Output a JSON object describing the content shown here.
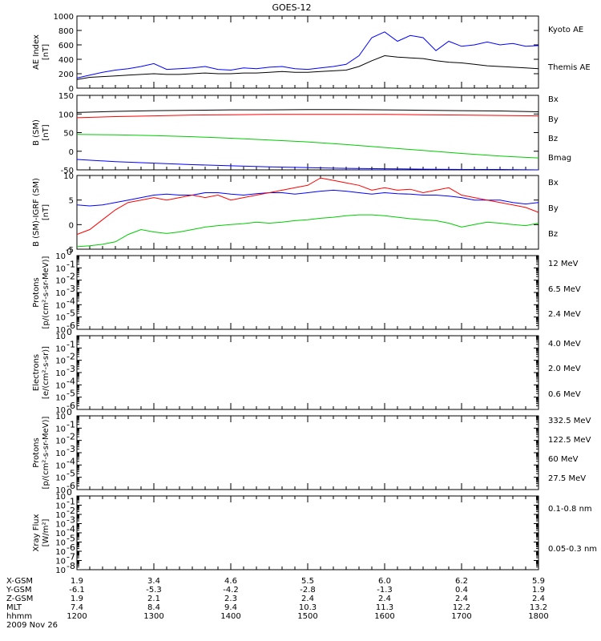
{
  "title": "GOES-12",
  "date_label": "2009 Nov 26",
  "chart_data": [
    {
      "type": "line",
      "panel": "ae",
      "ylabel": [
        "AE Index",
        "[nT]"
      ],
      "ylim": [
        0,
        1000
      ],
      "y_scale": "linear",
      "yticks": [
        0,
        200,
        400,
        600,
        800,
        1000
      ],
      "x": [
        "1200",
        "1210",
        "1220",
        "1230",
        "1240",
        "1250",
        "1300",
        "1310",
        "1320",
        "1330",
        "1340",
        "1350",
        "1400",
        "1410",
        "1420",
        "1430",
        "1440",
        "1450",
        "1500",
        "1510",
        "1520",
        "1530",
        "1540",
        "1550",
        "1600",
        "1610",
        "1620",
        "1630",
        "1640",
        "1650",
        "1700",
        "1710",
        "1720",
        "1730",
        "1740",
        "1750",
        "1800"
      ],
      "series": [
        {
          "name": "Kyoto AE",
          "color": "#0000ff",
          "values": [
            140,
            180,
            220,
            250,
            270,
            300,
            340,
            260,
            270,
            280,
            300,
            260,
            250,
            280,
            270,
            290,
            300,
            270,
            260,
            280,
            300,
            330,
            450,
            700,
            780,
            650,
            730,
            700,
            520,
            650,
            580,
            600,
            640,
            600,
            620,
            580,
            590
          ]
        },
        {
          "name": "Themis AE",
          "color": "#000000",
          "values": [
            120,
            150,
            160,
            170,
            180,
            190,
            200,
            190,
            190,
            200,
            210,
            200,
            200,
            210,
            210,
            220,
            230,
            220,
            220,
            230,
            240,
            250,
            300,
            380,
            450,
            430,
            420,
            410,
            380,
            360,
            350,
            330,
            310,
            300,
            290,
            280,
            270
          ]
        }
      ]
    },
    {
      "type": "line",
      "panel": "b",
      "ylabel": [
        "B (SM)",
        "[nT]"
      ],
      "ylim": [
        -50,
        150
      ],
      "y_scale": "linear",
      "yticks": [
        -50,
        0,
        50,
        100,
        150
      ],
      "x": [
        "1200",
        "1230",
        "1300",
        "1330",
        "1400",
        "1430",
        "1500",
        "1530",
        "1600",
        "1630",
        "1700",
        "1730",
        "1800"
      ],
      "series": [
        {
          "name": "Bx",
          "color": "#0000ff",
          "values": [
            -22,
            -28,
            -32,
            -36,
            -39,
            -42,
            -44,
            -46,
            -47,
            -48,
            -49,
            -49,
            -50
          ]
        },
        {
          "name": "By",
          "color": "#00cc00",
          "values": [
            45,
            44,
            42,
            39,
            35,
            30,
            25,
            18,
            10,
            2,
            -6,
            -13,
            -18
          ]
        },
        {
          "name": "Bz",
          "color": "#ff0000",
          "values": [
            90,
            93,
            95,
            97,
            98,
            99,
            99,
            99,
            99,
            98,
            97,
            96,
            95
          ]
        },
        {
          "name": "Bmag",
          "color": "#000000",
          "values": [
            104,
            107,
            109,
            110,
            111,
            111,
            112,
            112,
            111,
            110,
            109,
            108,
            106
          ]
        }
      ]
    },
    {
      "type": "line",
      "panel": "db",
      "ylabel": [
        "B (SM)-IGRF (SM)",
        "[nT]"
      ],
      "ylim": [
        -5,
        10
      ],
      "y_scale": "linear",
      "yticks": [
        -5,
        0,
        5,
        10
      ],
      "x": [
        "1200",
        "1210",
        "1220",
        "1230",
        "1240",
        "1250",
        "1300",
        "1310",
        "1320",
        "1330",
        "1340",
        "1350",
        "1400",
        "1410",
        "1420",
        "1430",
        "1440",
        "1450",
        "1500",
        "1510",
        "1520",
        "1530",
        "1540",
        "1550",
        "1600",
        "1610",
        "1620",
        "1630",
        "1640",
        "1650",
        "1700",
        "1710",
        "1720",
        "1730",
        "1740",
        "1750",
        "1800"
      ],
      "series": [
        {
          "name": "Bx",
          "color": "#0000ff",
          "values": [
            4,
            3.8,
            4,
            4.5,
            5,
            5.5,
            6,
            6.2,
            6,
            6,
            6.5,
            6.5,
            6.2,
            6,
            6.3,
            6.5,
            6.5,
            6.2,
            6.5,
            6.8,
            7,
            6.8,
            6.5,
            6.2,
            6.5,
            6.3,
            6.2,
            6,
            6,
            5.8,
            5.5,
            5,
            5,
            5,
            4.5,
            4.2,
            4.5
          ]
        },
        {
          "name": "By",
          "color": "#00cc00",
          "values": [
            -4.5,
            -4.3,
            -4,
            -3.5,
            -2,
            -1,
            -1.5,
            -1.8,
            -1.5,
            -1,
            -0.5,
            -0.2,
            0,
            0.2,
            0.5,
            0.3,
            0.5,
            0.8,
            1,
            1.3,
            1.5,
            1.8,
            2,
            2,
            1.8,
            1.5,
            1.2,
            1,
            0.8,
            0.3,
            -0.5,
            0,
            0.5,
            0.3,
            0,
            -0.2,
            0.3
          ]
        },
        {
          "name": "Bz",
          "color": "#ff0000",
          "values": [
            -2,
            -1,
            1,
            3,
            4.5,
            5,
            5.5,
            5,
            5.5,
            6,
            5.5,
            6,
            5,
            5.5,
            6,
            6.5,
            7,
            7.5,
            8,
            9.5,
            9,
            8.5,
            8,
            7,
            7.5,
            7,
            7.2,
            6.5,
            7,
            7.5,
            6,
            5.5,
            5,
            4.5,
            4,
            3.5,
            2.5
          ]
        }
      ]
    },
    {
      "type": "line",
      "panel": "protons1",
      "ylabel": [
        "Protons",
        "[p/(cm²-s-sr-MeV)]"
      ],
      "y_scale": "log",
      "ylim": [
        "1e-6",
        "1e0"
      ],
      "yticks": [
        -6,
        -5,
        -4,
        -3,
        -2,
        -1,
        0
      ],
      "series": [
        {
          "name": "12 MeV",
          "color": "#cc0000",
          "values": []
        },
        {
          "name": "6.5 MeV",
          "color": "#00cc00",
          "values": []
        },
        {
          "name": "2.4 MeV",
          "color": "#000000",
          "values": []
        }
      ]
    },
    {
      "type": "line",
      "panel": "electrons",
      "ylabel": [
        "Electrons",
        "[e/(cm²-s-sr)]"
      ],
      "y_scale": "log",
      "ylim": [
        "1e-6",
        "1e0"
      ],
      "yticks": [
        -6,
        -5,
        -4,
        -3,
        -2,
        -1,
        0
      ],
      "series": [
        {
          "name": "4.0 MeV",
          "color": "#cc0000",
          "values": []
        },
        {
          "name": "2.0 MeV",
          "color": "#00cc00",
          "values": []
        },
        {
          "name": "0.6 MeV",
          "color": "#000000",
          "values": []
        }
      ]
    },
    {
      "type": "line",
      "panel": "protons2",
      "ylabel": [
        "Protons",
        "[p/(cm²-s-sr-MeV)]"
      ],
      "y_scale": "log",
      "ylim": [
        "1e-6",
        "1e0"
      ],
      "yticks": [
        -6,
        -5,
        -4,
        -3,
        -2,
        -1,
        0
      ],
      "series": [
        {
          "name": "332.5 MeV",
          "color": "#cc0000",
          "values": []
        },
        {
          "name": "122.5 MeV",
          "color": "#ffcc00",
          "values": []
        },
        {
          "name": "60 MeV",
          "color": "#00a0e0",
          "values": []
        },
        {
          "name": "27.5 MeV",
          "color": "#000000",
          "values": []
        }
      ]
    },
    {
      "type": "line",
      "panel": "xray",
      "ylabel": [
        "Xray Flux",
        "[W/m²]"
      ],
      "y_scale": "log",
      "ylim": [
        "1e-8",
        "1e0"
      ],
      "yticks": [
        -8,
        -7,
        -6,
        -5,
        -4,
        -3,
        -2,
        -1,
        0
      ],
      "series": [
        {
          "name": "0.1-0.8 nm",
          "color": "#cc0000",
          "values": []
        },
        {
          "name": "0.05-0.3 nm",
          "color": "#0000ff",
          "values": []
        }
      ]
    }
  ],
  "x_axis_table": {
    "rows": [
      {
        "label": "X-GSM",
        "values": [
          "1.9",
          "3.4",
          "4.6",
          "5.5",
          "6.0",
          "6.2",
          "5.9"
        ]
      },
      {
        "label": "Y-GSM",
        "values": [
          "-6.1",
          "-5.3",
          "-4.2",
          "-2.8",
          "-1.3",
          "0.4",
          "1.9"
        ]
      },
      {
        "label": "Z-GSM",
        "values": [
          "1.9",
          "2.1",
          "2.3",
          "2.4",
          "2.4",
          "2.4",
          "2.4"
        ]
      },
      {
        "label": "MLT",
        "values": [
          "7.4",
          "8.4",
          "9.4",
          "10.3",
          "11.3",
          "12.2",
          "13.2"
        ]
      },
      {
        "label": "hhmm",
        "values": [
          "1200",
          "1300",
          "1400",
          "1500",
          "1600",
          "1700",
          "1800"
        ]
      }
    ]
  }
}
